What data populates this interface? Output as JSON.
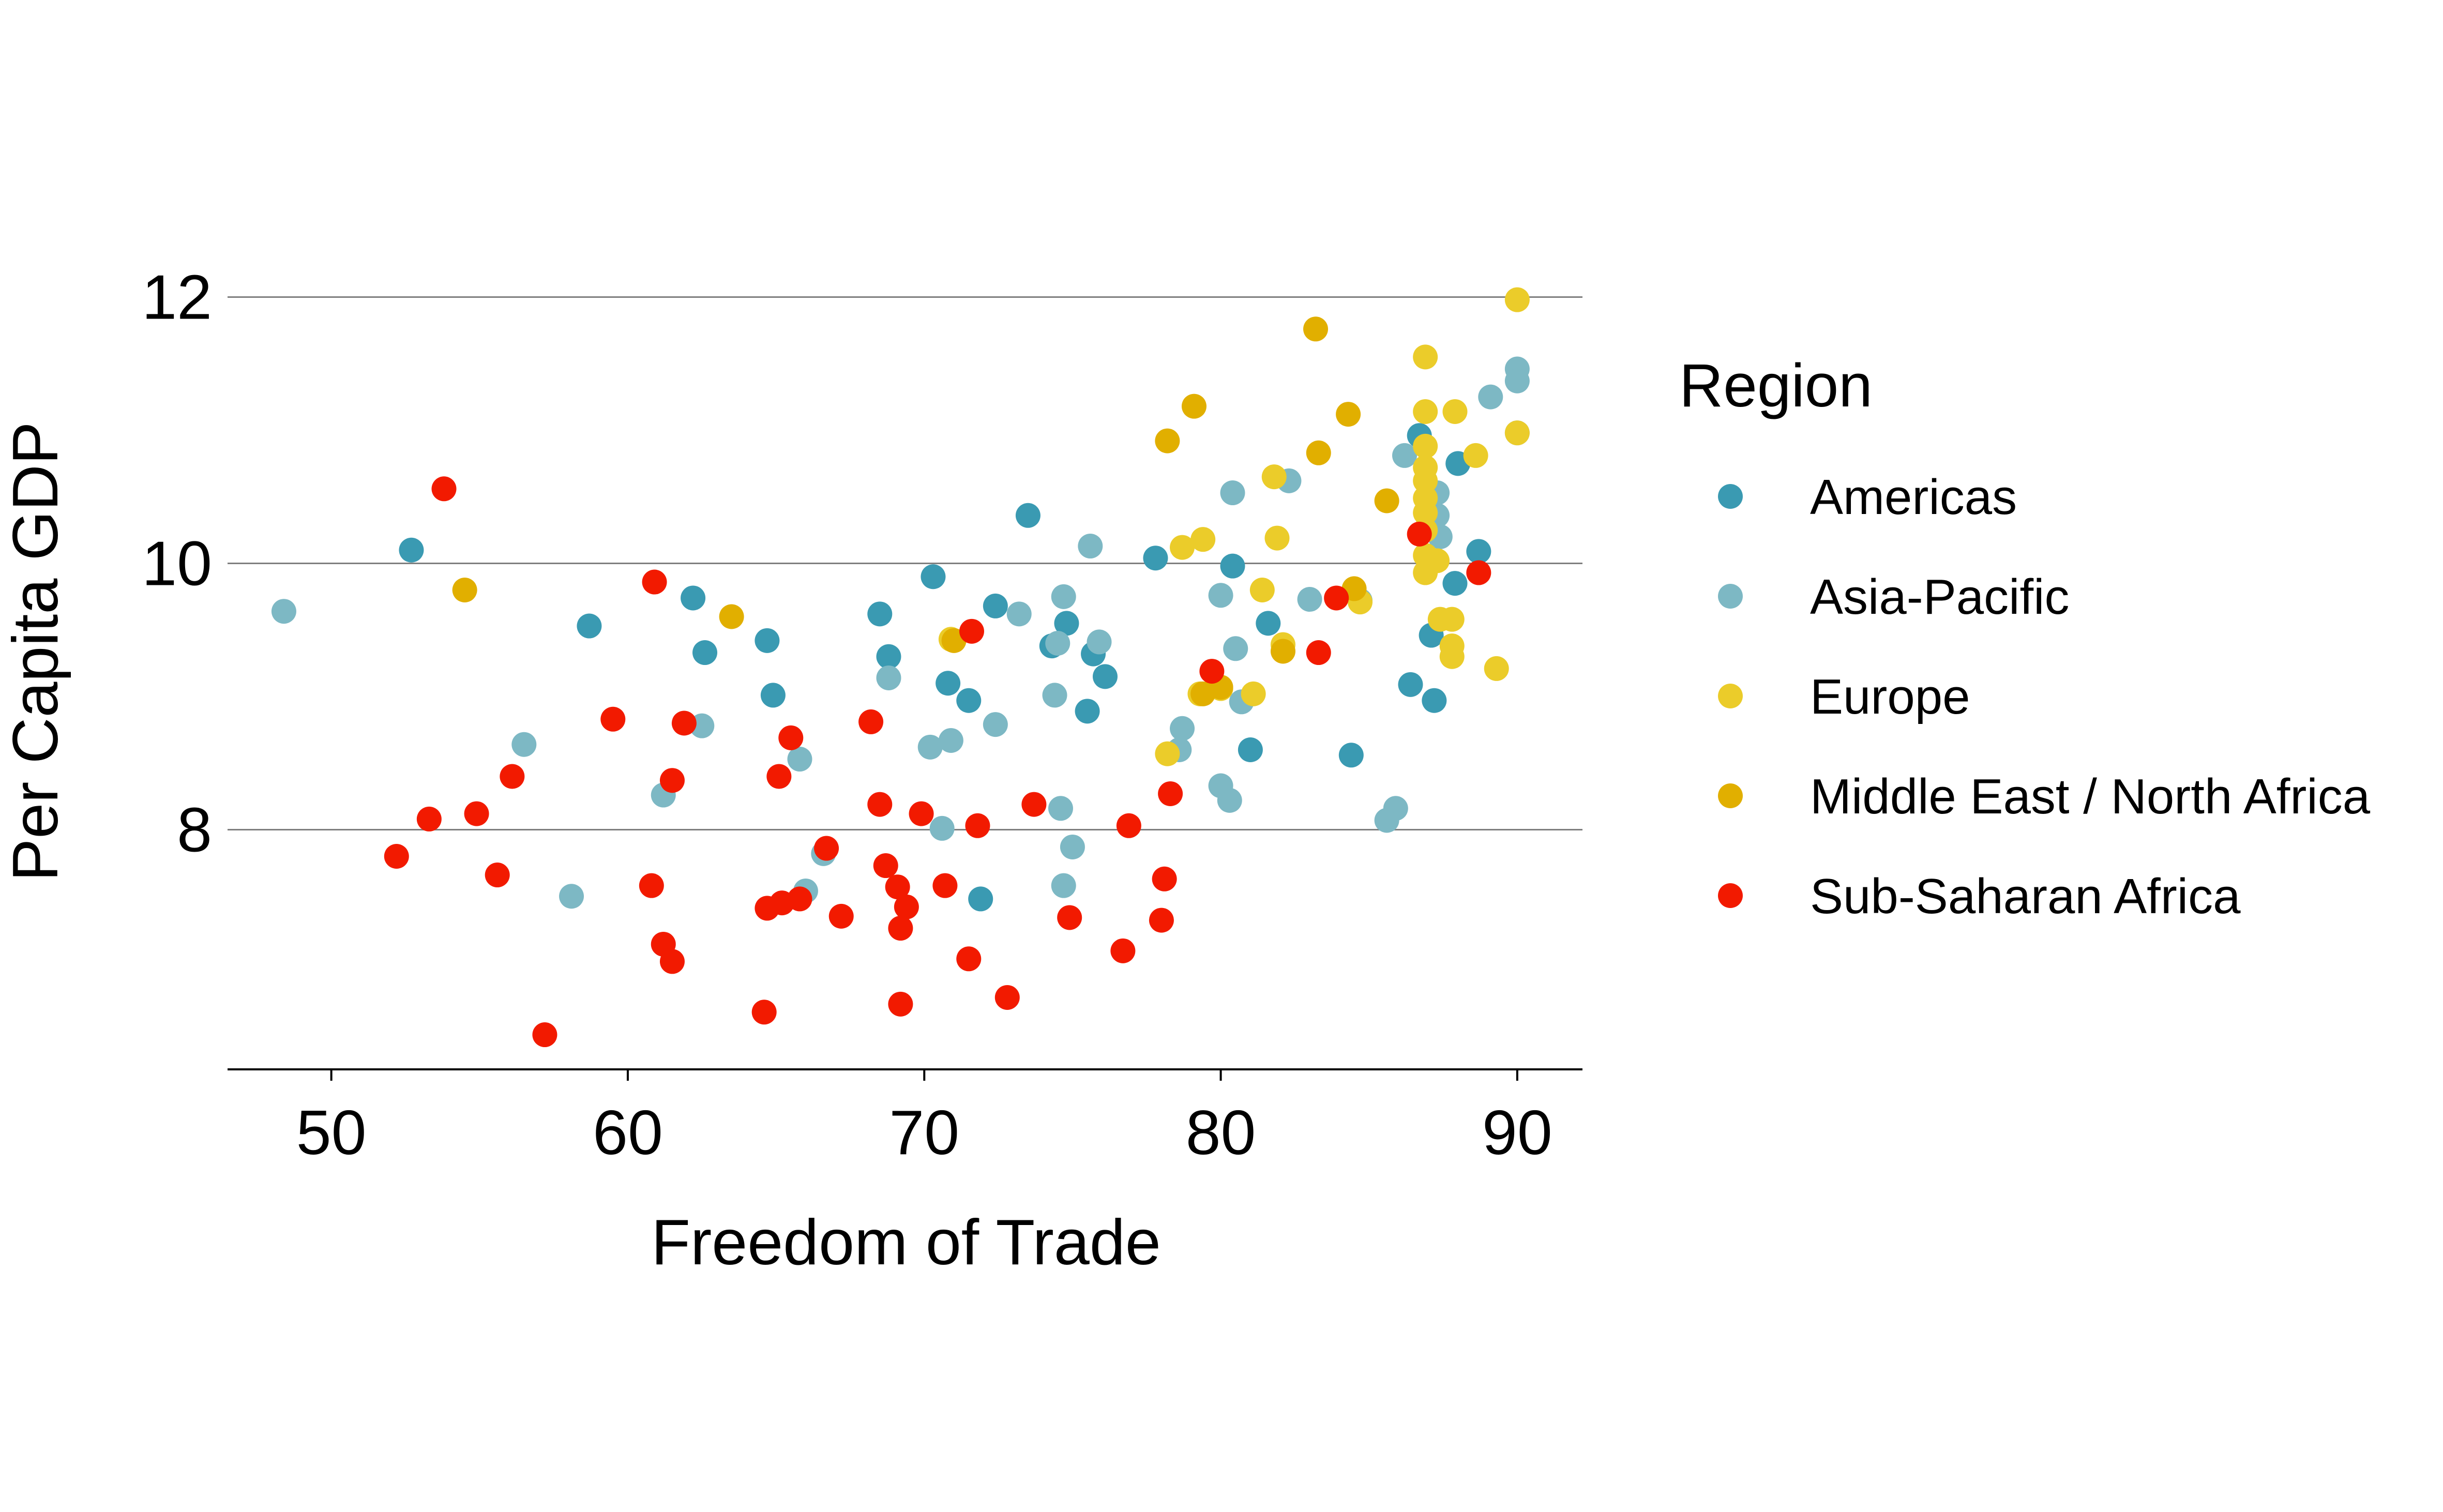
{
  "colors": {
    "Americas": "#3A9AB2",
    "Asia-Pacific": "#7DB8C4",
    "Europe": "#EBCC2A",
    "Middle East / North Africa": "#E1AF00",
    "Sub-Saharan Africa": "#F21A00",
    "gridline": "#7f7f7f",
    "axis": "#000000"
  },
  "chart_data": {
    "type": "scatter",
    "title": "",
    "xlabel": "Freedom of Trade",
    "ylabel": "Per Capita GDP",
    "xlim": [
      46.5,
      92.2
    ],
    "ylim": [
      6.2,
      12.6
    ],
    "xticks": [
      50,
      60,
      70,
      80,
      90
    ],
    "yticks": [
      8,
      10,
      12
    ],
    "grid": "horizontal major gridlines",
    "legend": {
      "title": "Region",
      "placement": "right",
      "entries": [
        "Americas",
        "Asia-Pacific",
        "Europe",
        "Middle East / North Africa",
        "Sub-Saharan Africa"
      ]
    },
    "series": [
      {
        "name": "Americas",
        "points": [
          [
            52.7,
            10.1
          ],
          [
            58.7,
            9.53
          ],
          [
            62.2,
            9.74
          ],
          [
            62.6,
            9.33
          ],
          [
            64.7,
            9.42
          ],
          [
            64.9,
            9.01
          ],
          [
            68.5,
            9.62
          ],
          [
            68.8,
            9.3
          ],
          [
            70.3,
            9.9
          ],
          [
            70.8,
            9.1
          ],
          [
            71.5,
            8.97
          ],
          [
            71.9,
            7.48
          ],
          [
            72.4,
            9.68
          ],
          [
            73.5,
            10.36
          ],
          [
            74.3,
            9.38
          ],
          [
            74.8,
            9.55
          ],
          [
            75.5,
            8.89
          ],
          [
            75.7,
            9.32
          ],
          [
            76.1,
            9.15
          ],
          [
            77.8,
            10.04
          ],
          [
            80.4,
            9.98
          ],
          [
            81.0,
            8.6
          ],
          [
            81.6,
            9.55
          ],
          [
            84.4,
            8.56
          ],
          [
            86.4,
            9.09
          ],
          [
            86.7,
            10.96
          ],
          [
            87.1,
            9.46
          ],
          [
            87.2,
            8.97
          ],
          [
            87.9,
            9.85
          ],
          [
            88.0,
            10.75
          ],
          [
            88.7,
            10.09
          ]
        ]
      },
      {
        "name": "Asia-Pacific",
        "points": [
          [
            48.4,
            9.64
          ],
          [
            56.5,
            8.64
          ],
          [
            58.1,
            7.5
          ],
          [
            61.2,
            8.26
          ],
          [
            62.5,
            8.78
          ],
          [
            65.8,
            8.53
          ],
          [
            66.0,
            7.54
          ],
          [
            66.6,
            7.82
          ],
          [
            68.8,
            9.14
          ],
          [
            70.2,
            8.62
          ],
          [
            70.6,
            8.01
          ],
          [
            70.9,
            8.67
          ],
          [
            72.4,
            8.79
          ],
          [
            73.2,
            9.62
          ],
          [
            74.4,
            9.01
          ],
          [
            74.5,
            9.4
          ],
          [
            74.6,
            8.16
          ],
          [
            74.7,
            9.75
          ],
          [
            74.7,
            7.58
          ],
          [
            75.0,
            7.87
          ],
          [
            75.6,
            10.13
          ],
          [
            75.9,
            9.41
          ],
          [
            78.6,
            8.6
          ],
          [
            78.7,
            8.76
          ],
          [
            80.0,
            8.33
          ],
          [
            80.0,
            9.76
          ],
          [
            80.3,
            8.22
          ],
          [
            80.4,
            10.53
          ],
          [
            80.5,
            9.36
          ],
          [
            80.7,
            8.96
          ],
          [
            82.3,
            10.62
          ],
          [
            83.0,
            9.73
          ],
          [
            84.7,
            9.72
          ],
          [
            85.6,
            8.07
          ],
          [
            85.9,
            8.16
          ],
          [
            86.2,
            10.81
          ],
          [
            87.3,
            10.53
          ],
          [
            87.4,
            10.2
          ],
          [
            87.3,
            10.36
          ],
          [
            89.1,
            11.25
          ],
          [
            90.0,
            11.46
          ],
          [
            90.0,
            11.37
          ],
          [
            90.0,
            10.98
          ]
        ]
      },
      {
        "name": "Europe",
        "points": [
          [
            70.9,
            9.43
          ],
          [
            78.2,
            8.57
          ],
          [
            78.7,
            10.12
          ],
          [
            79.4,
            10.18
          ],
          [
            79.3,
            9.02
          ],
          [
            80.0,
            9.06
          ],
          [
            81.1,
            9.02
          ],
          [
            81.4,
            9.8
          ],
          [
            81.8,
            10.65
          ],
          [
            81.9,
            10.19
          ],
          [
            82.1,
            9.39
          ],
          [
            84.7,
            9.71
          ],
          [
            86.9,
            11.55
          ],
          [
            86.9,
            11.14
          ],
          [
            86.9,
            10.25
          ],
          [
            86.9,
            10.38
          ],
          [
            86.9,
            10.49
          ],
          [
            86.9,
            10.62
          ],
          [
            86.9,
            10.72
          ],
          [
            86.9,
            10.88
          ],
          [
            86.9,
            10.06
          ],
          [
            86.9,
            9.93
          ],
          [
            87.3,
            10.02
          ],
          [
            87.4,
            9.58
          ],
          [
            87.8,
            9.58
          ],
          [
            87.8,
            9.38
          ],
          [
            87.8,
            9.3
          ],
          [
            87.9,
            11.14
          ],
          [
            88.6,
            10.81
          ],
          [
            89.3,
            9.21
          ],
          [
            90.0,
            11.98
          ],
          [
            90.0,
            10.98
          ]
        ]
      },
      {
        "name": "Middle East / North Africa",
        "points": [
          [
            54.5,
            9.8
          ],
          [
            63.5,
            9.6
          ],
          [
            71.0,
            9.42
          ],
          [
            78.2,
            10.92
          ],
          [
            79.1,
            11.18
          ],
          [
            79.4,
            9.02
          ],
          [
            80.0,
            9.07
          ],
          [
            82.1,
            9.34
          ],
          [
            83.2,
            11.76
          ],
          [
            83.3,
            10.83
          ],
          [
            84.3,
            11.12
          ],
          [
            84.5,
            9.81
          ],
          [
            85.6,
            10.47
          ]
        ]
      },
      {
        "name": "Sub-Saharan Africa",
        "points": [
          [
            52.2,
            7.8
          ],
          [
            53.3,
            8.08
          ],
          [
            53.8,
            10.56
          ],
          [
            54.9,
            8.12
          ],
          [
            55.6,
            7.66
          ],
          [
            56.1,
            8.4
          ],
          [
            57.2,
            6.46
          ],
          [
            59.5,
            8.83
          ],
          [
            60.8,
            7.58
          ],
          [
            60.9,
            9.86
          ],
          [
            61.2,
            7.14
          ],
          [
            61.5,
            7.01
          ],
          [
            61.5,
            8.37
          ],
          [
            61.9,
            8.8
          ],
          [
            64.6,
            6.63
          ],
          [
            64.7,
            7.41
          ],
          [
            65.1,
            8.4
          ],
          [
            65.2,
            7.45
          ],
          [
            65.5,
            8.69
          ],
          [
            65.8,
            7.48
          ],
          [
            66.7,
            7.86
          ],
          [
            67.2,
            7.35
          ],
          [
            68.2,
            8.81
          ],
          [
            68.5,
            8.19
          ],
          [
            68.7,
            7.73
          ],
          [
            69.1,
            7.57
          ],
          [
            69.2,
            7.26
          ],
          [
            69.2,
            6.69
          ],
          [
            69.4,
            7.42
          ],
          [
            69.9,
            8.12
          ],
          [
            70.7,
            7.58
          ],
          [
            71.5,
            7.03
          ],
          [
            71.6,
            9.49
          ],
          [
            71.8,
            8.03
          ],
          [
            72.8,
            6.74
          ],
          [
            73.7,
            8.19
          ],
          [
            74.9,
            7.34
          ],
          [
            76.7,
            7.09
          ],
          [
            76.9,
            8.03
          ],
          [
            78.0,
            7.32
          ],
          [
            78.1,
            7.63
          ],
          [
            78.3,
            8.27
          ],
          [
            79.7,
            9.19
          ],
          [
            83.3,
            9.33
          ],
          [
            83.9,
            9.74
          ],
          [
            86.7,
            10.22
          ],
          [
            88.7,
            9.93
          ]
        ]
      }
    ]
  }
}
